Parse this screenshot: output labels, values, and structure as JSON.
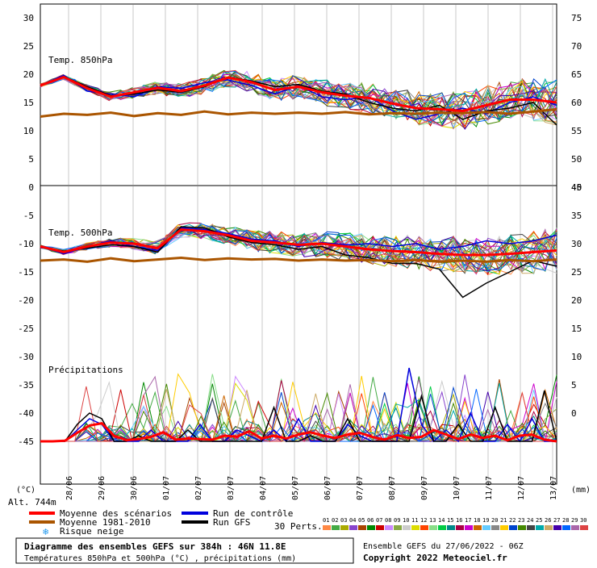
{
  "chart_data": {
    "type": "line",
    "x_dates": [
      "28/06",
      "29/06",
      "30/06",
      "01/07",
      "02/07",
      "03/07",
      "04/07",
      "05/07",
      "06/07",
      "07/07",
      "08/07",
      "09/07",
      "10/07",
      "11/07",
      "12/07",
      "13/07"
    ],
    "left_axis_unit": "(°C)",
    "right_axis_unit": "(mm)",
    "altitude_label": "Alt. 744m",
    "top_panel": {
      "label": "Temp. 850hPa",
      "left_ticks": [
        "30",
        "25",
        "20",
        "15",
        "10",
        "5",
        "0"
      ],
      "right_ticks": [
        "75",
        "70",
        "65",
        "60",
        "55",
        "50",
        "45"
      ],
      "ylim": [
        0,
        30
      ],
      "series": [
        {
          "name": "Moyenne des scénarios",
          "color": "#ff0000",
          "values": [
            18,
            19.5,
            17.5,
            16,
            16.8,
            17.6,
            17,
            18,
            19.4,
            18.6,
            17.2,
            17.8,
            16.8,
            16.2,
            15.8,
            14.8,
            14,
            13.8,
            13.5,
            14.5,
            15.5,
            15.5,
            15
          ]
        },
        {
          "name": "Moyenne 1981-2010",
          "color": "#aa5500",
          "values": [
            12.5,
            13,
            12.8,
            13.2,
            12.6,
            13.1,
            12.8,
            13.4,
            12.9,
            13.2,
            13,
            13.2,
            13,
            13.3,
            12.9,
            13.1,
            13,
            13.2,
            13.1,
            13.3,
            13,
            13.4,
            13.8
          ]
        },
        {
          "name": "Run de contrôle",
          "color": "#0000dd",
          "values": [
            18,
            19.8,
            17,
            16.5,
            16,
            17.8,
            17.5,
            18.5,
            19,
            18,
            16.5,
            18,
            16,
            15.5,
            16,
            13.5,
            12,
            13,
            14,
            13,
            15,
            16,
            14.5
          ]
        },
        {
          "name": "Run GFS",
          "color": "#000000",
          "values": [
            18,
            19.6,
            17.8,
            16.2,
            16.5,
            17.2,
            16.8,
            17.8,
            19.5,
            18.8,
            17.8,
            18.2,
            17,
            16.5,
            15,
            14,
            13.5,
            14.5,
            12,
            13.5,
            14,
            15,
            11
          ]
        }
      ]
    },
    "bottom_panel": {
      "label": "Temp. 500hPa",
      "left_ticks": [
        "-5",
        "-10",
        "-15",
        "-20",
        "-25",
        "-30",
        "-35",
        "-40",
        "-45"
      ],
      "right_ticks": [
        "40",
        "35",
        "30",
        "25",
        "20",
        "15",
        "10",
        "5",
        "0"
      ],
      "ylim": [
        -50,
        0
      ],
      "series": [
        {
          "name": "Moyenne des scénarios",
          "color": "#ff0000",
          "values": [
            -10.5,
            -11.5,
            -10.5,
            -9.8,
            -10,
            -10.8,
            -7.5,
            -7.8,
            -8.5,
            -9.5,
            -9.8,
            -10.2,
            -10,
            -10.5,
            -11,
            -11.3,
            -11.5,
            -11.8,
            -12,
            -12,
            -11.8,
            -11.5,
            -11.2
          ]
        },
        {
          "name": "Moyenne 1981-2010",
          "color": "#aa5500",
          "values": [
            -13,
            -12.8,
            -13.2,
            -12.6,
            -13.1,
            -12.8,
            -12.5,
            -12.9,
            -12.6,
            -12.8,
            -12.7,
            -13,
            -12.8,
            -13,
            -12.9,
            -13.1,
            -12.9,
            -13.2,
            -13,
            -13.2,
            -12.9,
            -13.1,
            -12.8
          ]
        },
        {
          "name": "Run de contrôle",
          "color": "#0000dd",
          "values": [
            -10.5,
            -11.8,
            -10.6,
            -9.5,
            -10.5,
            -11.2,
            -7.2,
            -7.5,
            -8.2,
            -9.2,
            -9.5,
            -10.5,
            -9.8,
            -10.2,
            -10,
            -10.5,
            -10,
            -11,
            -10.5,
            -9.5,
            -10,
            -9.5,
            -8.5
          ]
        },
        {
          "name": "Run GFS",
          "color": "#000000",
          "values": [
            -10.5,
            -11.3,
            -10.8,
            -10.2,
            -10.5,
            -11.5,
            -7,
            -7.2,
            -8.8,
            -9.8,
            -10.2,
            -11,
            -10.5,
            -12,
            -12.5,
            -13.5,
            -13.5,
            -14.5,
            -19.5,
            -17,
            -15,
            -13,
            -14
          ]
        }
      ]
    },
    "precip": {
      "label": "Précipitations",
      "ylim_mm": [
        0,
        45
      ],
      "series": [
        {
          "name": "Moyenne des scénarios",
          "color": "#ff0000",
          "values": [
            0,
            0,
            0.1,
            1.5,
            2.8,
            3.2,
            1,
            0.2,
            0.4,
            0.8,
            1.6,
            0.3,
            0.5,
            0.4,
            0.3,
            1,
            0.8,
            1.8,
            0.5,
            1,
            0.5,
            1.2,
            1.6,
            1,
            0.6,
            1.2,
            1.5,
            0.8,
            0.3,
            1.1,
            0.6,
            0.8,
            2,
            1.2,
            0.4,
            1.2,
            0.6,
            1,
            0.2,
            1,
            1.2,
            0.3,
            0
          ]
        },
        {
          "name": "Run de contrôle",
          "color": "#0000dd",
          "values": [
            0,
            0,
            0,
            2,
            4,
            3,
            0,
            0,
            0,
            2,
            0,
            0,
            0,
            3,
            0,
            0,
            2,
            1,
            0,
            2,
            0,
            4,
            0,
            0,
            0,
            3,
            1,
            0,
            0,
            0,
            13,
            3,
            0,
            2,
            0,
            5,
            0,
            0,
            3,
            0,
            4,
            0,
            0
          ]
        },
        {
          "name": "Run GFS",
          "color": "#000000",
          "values": [
            0,
            0,
            0,
            3,
            5,
            4,
            0,
            0,
            1,
            0,
            0,
            0,
            2,
            0,
            0,
            0,
            0,
            0,
            0,
            6,
            0,
            0,
            1,
            0,
            0,
            4,
            0,
            0,
            0,
            0,
            0,
            8,
            0,
            0,
            3,
            0,
            0,
            6,
            0,
            0,
            0,
            9,
            0
          ]
        }
      ]
    }
  },
  "legend": {
    "items": [
      {
        "label": "Moyenne des scénarios",
        "color": "#ff0000"
      },
      {
        "label": "Moyenne 1981-2010",
        "color": "#aa5500"
      },
      {
        "label": "Risque neige",
        "color": "#2299ee",
        "icon": "snowflake-icon"
      },
      {
        "label": "Run de contrôle",
        "color": "#0000dd"
      },
      {
        "label": "Run GFS",
        "color": "#000000"
      }
    ],
    "perts_label": "30 Perts.",
    "pert_numbers": [
      "01",
      "02",
      "03",
      "04",
      "05",
      "06",
      "07",
      "08",
      "09",
      "10",
      "11",
      "12",
      "13",
      "14",
      "15",
      "16",
      "17",
      "18",
      "19",
      "20",
      "21",
      "22",
      "23",
      "24",
      "25",
      "26",
      "27",
      "28",
      "29",
      "30"
    ],
    "pert_colors": [
      "#ff8844",
      "#44aa44",
      "#aaaa00",
      "#8844cc",
      "#aa4400",
      "#008800",
      "#cc0000",
      "#cc88ff",
      "#88aa44",
      "#cccccc",
      "#dddd00",
      "#ff4400",
      "#88dd88",
      "#00cc44",
      "#008888",
      "#aa0044",
      "#cc00cc",
      "#cc6600",
      "#66ccff",
      "#888888",
      "#ffcc00",
      "#0044cc",
      "#448800",
      "#444444",
      "#00aaaa",
      "#ccaa66",
      "#4400aa",
      "#0066ff",
      "#aa66aa",
      "#dd4444"
    ]
  },
  "footer": {
    "title": "Diagramme des ensembles GEFS sur 384h : 46N 11.8E",
    "subtitle": "Températures 850hPa et 500hPa (°C) , précipitations (mm)",
    "run": "Ensemble GEFS du 27/06/2022 - 06Z",
    "copyright": "Copyright 2022 Meteociel.fr"
  }
}
